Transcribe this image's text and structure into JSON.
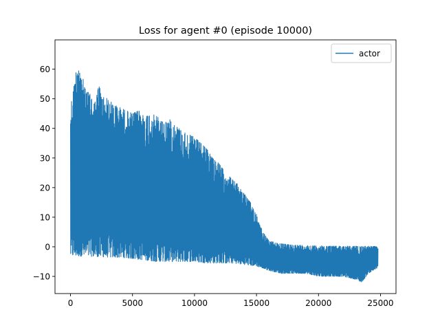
{
  "chart_data": {
    "type": "line",
    "title": "Loss for agent #0 (episode 10000)",
    "xlabel": "",
    "ylabel": "",
    "xlim": [
      -1250,
      26250
    ],
    "ylim": [
      -15.8,
      69.9
    ],
    "xticks": [
      0,
      5000,
      10000,
      15000,
      20000,
      25000
    ],
    "xtick_labels": [
      "0",
      "5000",
      "10000",
      "15000",
      "20000",
      "25000"
    ],
    "yticks": [
      -10,
      0,
      10,
      20,
      30,
      40,
      50,
      60
    ],
    "ytick_labels": [
      "−10",
      "0",
      "10",
      "20",
      "30",
      "40",
      "50",
      "60"
    ],
    "grid": false,
    "legend": {
      "location": "upper right",
      "entries": [
        "actor"
      ]
    },
    "series": [
      {
        "name": "actor",
        "color": "#1f77b4",
        "x_range": [
          0,
          24800
        ],
        "upper_envelope": {
          "x": [
            0,
            100,
            300,
            500,
            600,
            650,
            800,
            1000,
            1200,
            1500,
            2000,
            2300,
            2500,
            3000,
            3500,
            4000,
            4500,
            5000,
            5500,
            6000,
            6500,
            7000,
            7500,
            8000,
            8500,
            9000,
            9500,
            10000,
            10500,
            11000,
            11500,
            12000,
            12500,
            13000,
            13500,
            14000,
            14500,
            15000,
            15500,
            16000,
            16500,
            17000,
            18000,
            20000,
            22000,
            24000,
            24800
          ],
          "y": [
            47,
            50,
            55,
            61,
            62,
            66,
            58,
            57,
            53,
            52,
            49,
            55,
            51,
            50,
            48,
            47,
            46,
            45,
            46,
            44,
            45,
            44,
            42,
            43,
            41,
            39,
            38,
            37,
            35,
            33,
            30,
            28,
            25,
            23,
            21,
            18,
            15,
            11,
            5,
            2,
            1.5,
            1,
            0.6,
            0.3,
            0.2,
            0.2,
            0.1
          ]
        },
        "lower_envelope": {
          "x": [
            0,
            1000,
            2000,
            3000,
            4000,
            5000,
            6000,
            7000,
            8000,
            9000,
            10000,
            11000,
            12000,
            13000,
            14000,
            15000,
            16000,
            17000,
            18000,
            19000,
            20000,
            21000,
            22000,
            23000,
            23500,
            24000,
            24800
          ],
          "y": [
            -3,
            -3.2,
            -3.3,
            -3.5,
            -3.6,
            -4,
            -4.5,
            -5,
            -5,
            -5,
            -5,
            -5.5,
            -5.5,
            -5.5,
            -6,
            -6.5,
            -8,
            -9,
            -9,
            -9,
            -10,
            -10,
            -10,
            -11,
            -12,
            -9,
            -7
          ]
        }
      }
    ]
  }
}
